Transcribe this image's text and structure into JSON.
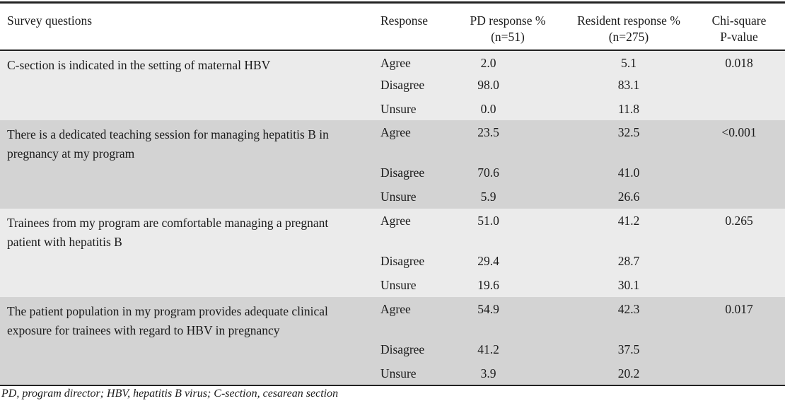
{
  "table": {
    "headers": {
      "question": "Survey questions",
      "response": "Response",
      "pd_line1": "PD response %",
      "pd_line2": "(n=51)",
      "resident_line1": "Resident response %",
      "resident_line2": "(n=275)",
      "chi_line1": "Chi-square",
      "chi_line2": "P-value"
    },
    "groups": [
      {
        "question": "C-section is indicated in the setting of maternal HBV",
        "p_value": "0.018",
        "responses": [
          {
            "label": "Agree",
            "pd": "2.0",
            "resident": "5.1"
          },
          {
            "label": "Disagree",
            "pd": "98.0",
            "resident": "83.1"
          },
          {
            "label": "Unsure",
            "pd": "0.0",
            "resident": "11.8"
          }
        ]
      },
      {
        "question": "There is a dedicated teaching session for managing hepatitis B in pregnancy at my program",
        "p_value": "<0.001",
        "responses": [
          {
            "label": "Agree",
            "pd": "23.5",
            "resident": "32.5"
          },
          {
            "label": "Disagree",
            "pd": "70.6",
            "resident": "41.0"
          },
          {
            "label": "Unsure",
            "pd": "5.9",
            "resident": "26.6"
          }
        ]
      },
      {
        "question": "Trainees from my program are comfortable managing a pregnant patient with hepatitis B",
        "p_value": "0.265",
        "responses": [
          {
            "label": "Agree",
            "pd": "51.0",
            "resident": "41.2"
          },
          {
            "label": "Disagree",
            "pd": "29.4",
            "resident": "28.7"
          },
          {
            "label": "Unsure",
            "pd": "19.6",
            "resident": "30.1"
          }
        ]
      },
      {
        "question": "The patient population in my program provides adequate clinical exposure for trainees with regard to HBV in pregnancy",
        "p_value": "0.017",
        "responses": [
          {
            "label": "Agree",
            "pd": "54.9",
            "resident": "42.3"
          },
          {
            "label": "Disagree",
            "pd": "41.2",
            "resident": "37.5"
          },
          {
            "label": "Unsure",
            "pd": "3.9",
            "resident": "20.2"
          }
        ]
      }
    ],
    "footnote": "PD, program director; HBV, hepatitis B virus; C-section, cesarean section"
  },
  "colors": {
    "band_light": "#ebebeb",
    "band_dark": "#d3d3d3",
    "rule": "#222222",
    "text": "#1b1b1b"
  }
}
